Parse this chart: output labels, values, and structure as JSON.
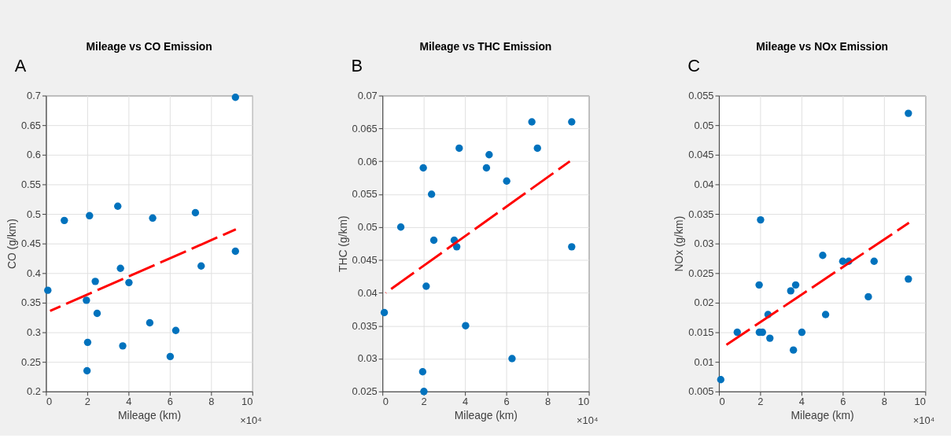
{
  "chart_data": [
    {
      "type": "scatter",
      "title": "Mileage vs CO Emission",
      "xlabel": "Mileage (km)",
      "ylabel": "CO (g/km)",
      "annotations": [
        "A",
        "×10⁴"
      ],
      "xlim": [
        0,
        10
      ],
      "xticks": [
        0,
        2,
        4,
        6,
        8,
        10
      ],
      "ylim": [
        0.2,
        0.7
      ],
      "yticks": [
        0.2,
        0.25,
        0.3,
        0.35,
        0.4,
        0.45,
        0.5,
        0.55,
        0.6,
        0.65,
        0.7
      ],
      "grid": true,
      "marker": "circle",
      "series": [
        {
          "color": "#0072bd",
          "x": [
            0.09,
            0.89,
            1.96,
            1.99,
            2.02,
            2.11,
            2.39,
            2.48,
            3.48,
            3.61,
            3.72,
            4.02,
            5.03,
            5.17,
            6.02,
            6.29,
            7.24,
            7.52,
            9.18,
            9.18
          ],
          "values": [
            0.371,
            0.489,
            0.354,
            0.235,
            0.283,
            0.497,
            0.386,
            0.332,
            0.513,
            0.408,
            0.277,
            0.384,
            0.316,
            0.493,
            0.259,
            0.303,
            0.502,
            0.412,
            0.697,
            0.437
          ]
        },
        {
          "type": "line",
          "color": "#ff0000",
          "line_style": "dashed",
          "marker": "none",
          "x": [
            0.2,
            9.2
          ],
          "values": [
            0.336,
            0.474
          ]
        }
      ]
    },
    {
      "type": "scatter",
      "title": "Mileage vs THC Emission",
      "xlabel": "Mileage (km)",
      "ylabel": "THC (g/km)",
      "annotations": [
        "B",
        "×10⁴"
      ],
      "xlim": [
        0,
        10
      ],
      "xticks": [
        0,
        2,
        4,
        6,
        8,
        10
      ],
      "ylim": [
        0.025,
        0.07
      ],
      "yticks": [
        0.025,
        0.03,
        0.035,
        0.04,
        0.045,
        0.05,
        0.055,
        0.06,
        0.065,
        0.07
      ],
      "grid": true,
      "marker": "circle",
      "series": [
        {
          "color": "#0072bd",
          "x": [
            0.09,
            0.89,
            1.95,
            1.98,
            2.01,
            2.12,
            2.38,
            2.49,
            3.48,
            3.6,
            3.72,
            4.03,
            5.04,
            5.17,
            6.02,
            6.28,
            7.24,
            7.51,
            9.17,
            9.17
          ],
          "values": [
            0.037,
            0.05,
            0.028,
            0.059,
            0.025,
            0.041,
            0.055,
            0.048,
            0.048,
            0.047,
            0.062,
            0.035,
            0.059,
            0.061,
            0.057,
            0.03,
            0.066,
            0.062,
            0.066,
            0.047
          ]
        },
        {
          "type": "line",
          "color": "#ff0000",
          "line_style": "dashed",
          "marker": "none",
          "x": [
            0.16,
            9.08
          ],
          "values": [
            0.04,
            0.06
          ]
        }
      ]
    },
    {
      "type": "scatter",
      "title": "Mileage vs NOx Emission",
      "xlabel": "Mileage (km)",
      "ylabel": "NOx (g/km)",
      "annotations": [
        "C",
        "×10⁴"
      ],
      "xlim": [
        0,
        10
      ],
      "xticks": [
        0,
        2,
        4,
        6,
        8,
        10
      ],
      "ylim": [
        0.005,
        0.055
      ],
      "yticks": [
        0.005,
        0.01,
        0.015,
        0.02,
        0.025,
        0.03,
        0.035,
        0.04,
        0.045,
        0.05,
        0.055
      ],
      "grid": true,
      "marker": "circle",
      "series": [
        {
          "color": "#0072bd",
          "x": [
            0.09,
            0.89,
            1.96,
            1.95,
            2.02,
            2.11,
            2.38,
            2.47,
            3.48,
            3.61,
            3.72,
            4.02,
            5.03,
            5.17,
            6.0,
            6.29,
            7.24,
            7.52,
            9.18,
            9.18
          ],
          "values": [
            0.007,
            0.015,
            0.015,
            0.023,
            0.034,
            0.015,
            0.018,
            0.014,
            0.022,
            0.012,
            0.023,
            0.015,
            0.028,
            0.018,
            0.027,
            0.027,
            0.021,
            0.027,
            0.052,
            0.024
          ]
        },
        {
          "type": "line",
          "color": "#ff0000",
          "line_style": "dashed",
          "marker": "none",
          "x": [
            0.29,
            9.21
          ],
          "values": [
            0.0127,
            0.0335
          ]
        }
      ]
    }
  ]
}
